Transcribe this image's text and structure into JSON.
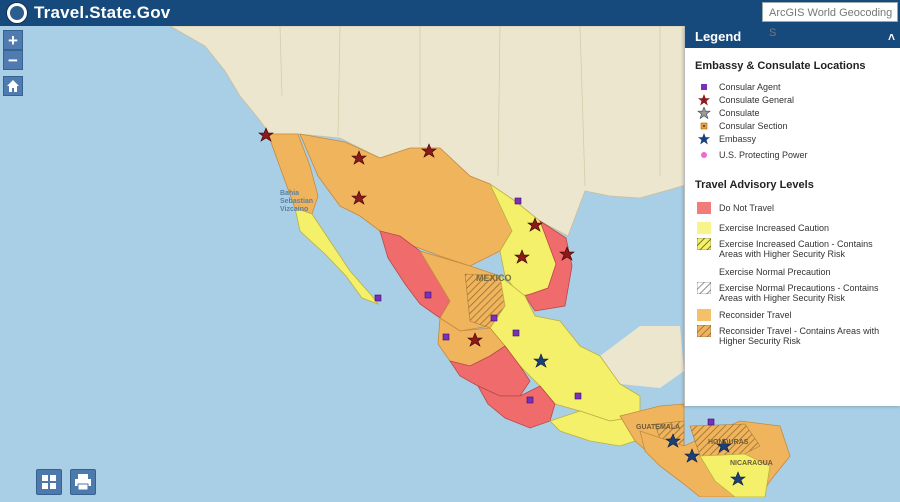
{
  "header": {
    "title": "Travel.State.Gov",
    "search_placeholder": "ArcGIS World Geocoding S"
  },
  "controls": {
    "zoom_in": "+",
    "zoom_out": "−"
  },
  "map_labels": {
    "mexico": "MEXICO",
    "bahia": "Bahia Sebastian Vizcaino",
    "guatemala": "GUATEMALA",
    "honduras": "HONDURAS",
    "nicaragua": "NICARAGUA"
  },
  "legend": {
    "title": "Legend",
    "toggle": "˄",
    "section1": "Embassy & Consulate Locations",
    "locations": [
      {
        "label": "Consular Agent",
        "icon": "purple-square-icon"
      },
      {
        "label": "Consulate General",
        "icon": "red-star-icon"
      },
      {
        "label": "Consulate",
        "icon": "gray-star-icon"
      },
      {
        "label": "Consular Section",
        "icon": "orange-square-icon"
      },
      {
        "label": "Embassy",
        "icon": "blue-star-icon"
      },
      {
        "label": "U.S. Protecting Power",
        "icon": "pink-dot-icon"
      }
    ],
    "section2": "Travel Advisory Levels",
    "levels": [
      {
        "label": "Do Not Travel",
        "color": "#f27c7c"
      },
      {
        "label": "Exercise Increased Caution",
        "color": "#f7f48c"
      },
      {
        "label": "Exercise Increased Caution - Contains Areas with Higher Security Risk",
        "color": "#f7f48c"
      },
      {
        "label": "Exercise Normal Precaution",
        "color": "#ffffff"
      },
      {
        "label": "Exercise Normal Precautions - Contains Areas with Higher Security Risk",
        "color": "#ffffff"
      },
      {
        "label": "Reconsider Travel",
        "color": "#f5c06a"
      },
      {
        "label": "Reconsider Travel - Contains Areas with Higher Security Risk",
        "color": "#d9a44a"
      }
    ]
  },
  "colors": {
    "header": "#174a7c",
    "ocean": "#a9cfe6",
    "land": "#ece6cf",
    "reconsider": "#f0b45c",
    "caution": "#f5f06a",
    "do_not": "#f06b6b"
  }
}
